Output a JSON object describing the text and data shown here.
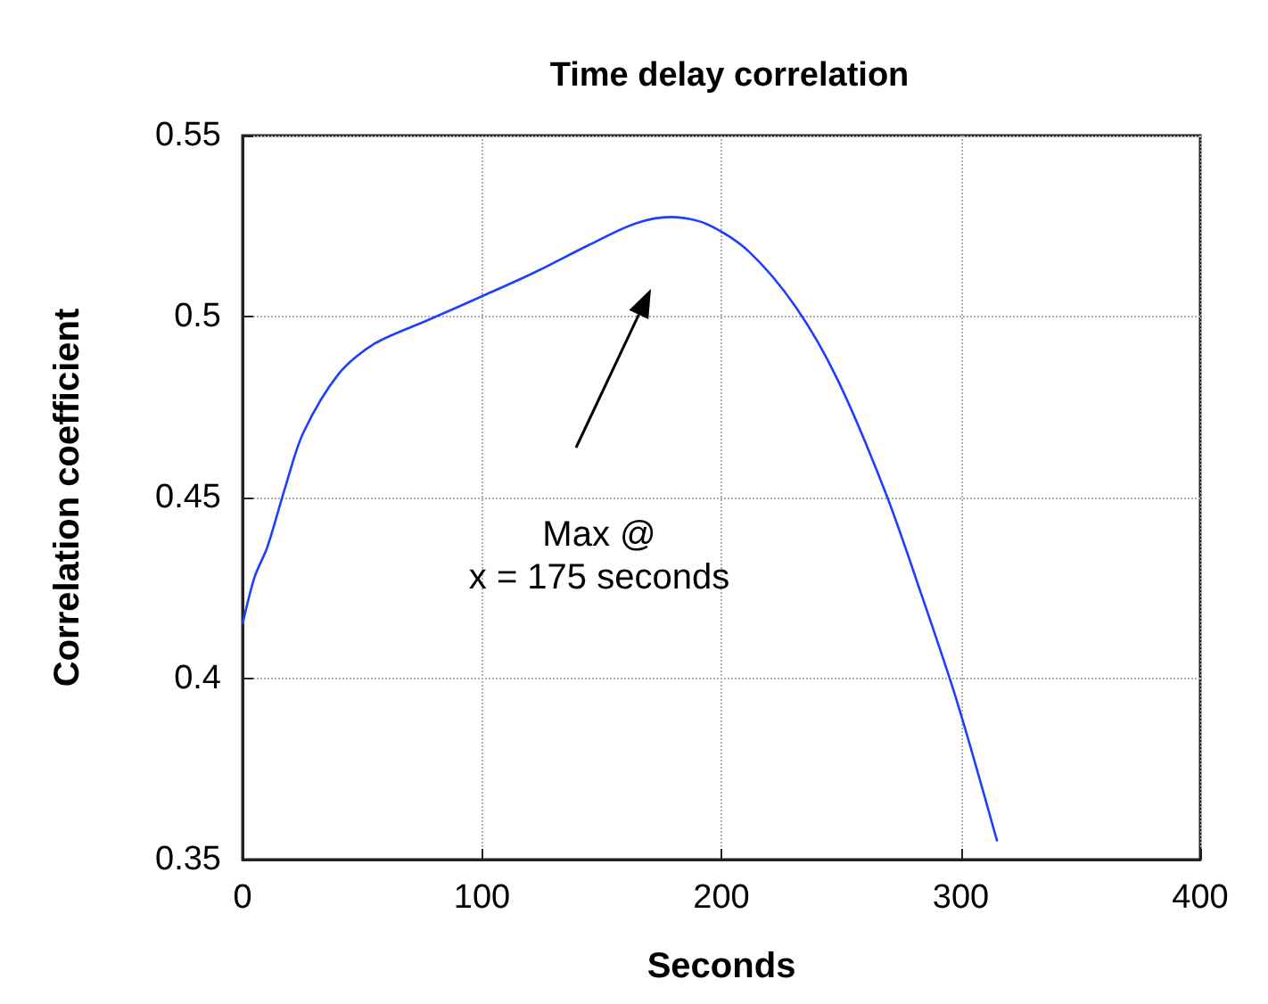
{
  "chart_data": {
    "type": "line",
    "title": "Time delay correlation",
    "xlabel": "Seconds",
    "ylabel": "Correlation coefficient",
    "x": [
      0,
      5,
      10.4,
      17.9,
      25.3,
      40.2,
      55.1,
      77.4,
      100,
      122,
      144.5,
      164,
      179,
      194,
      211.4,
      231.3,
      248.5,
      268.6,
      283.5,
      298.4,
      315.2
    ],
    "series": [
      {
        "color": "#1f3fff",
        "values": [
          0.415,
          0.428,
          0.4364,
          0.453,
          0.4678,
          0.4842,
          0.4925,
          0.499,
          0.5056,
          0.5122,
          0.5197,
          0.5257,
          0.5275,
          0.5255,
          0.518,
          0.5024,
          0.4826,
          0.4513,
          0.4233,
          0.3937,
          0.355
        ]
      }
    ],
    "xlim": [
      0,
      400
    ],
    "xticks": [
      0,
      100,
      200,
      300,
      400
    ],
    "ylim": [
      0.35,
      0.55
    ],
    "yticks": [
      0.35,
      0.4,
      0.45,
      0.5,
      0.55
    ],
    "grid": true,
    "marker": "none",
    "line_style": "solid",
    "annotations": [
      "Max @\nx = 175 seconds"
    ]
  }
}
